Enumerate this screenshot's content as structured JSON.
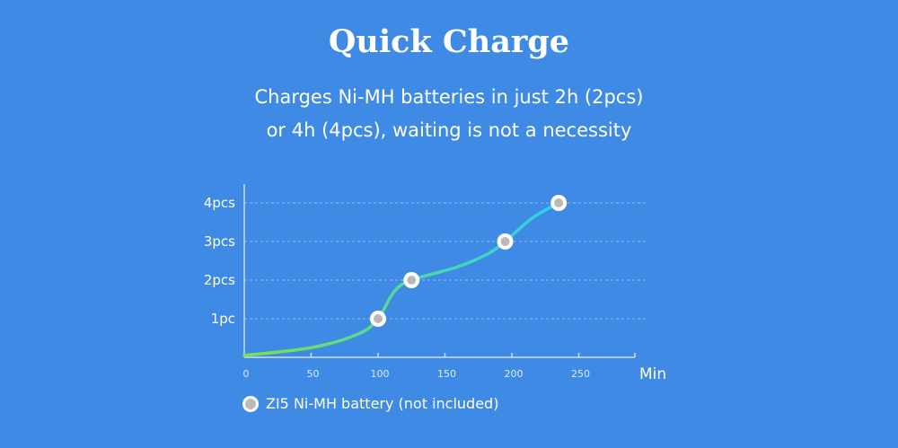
{
  "header": {
    "title": "Quick Charge",
    "subtitle_line1": "Charges Ni-MH batteries in just 2h (2pcs)",
    "subtitle_line2": "or 4h (4pcs), waiting is not a necessity"
  },
  "chart_data": {
    "type": "line",
    "x_unit": "Min",
    "x_ticks": [
      "0",
      "50",
      "100",
      "150",
      "200",
      "250"
    ],
    "y_ticks": [
      "1pc",
      "2pcs",
      "3pcs",
      "4pcs"
    ],
    "xlim": [
      0,
      290
    ],
    "ylim": [
      0,
      4.4
    ],
    "grid": "horizontal dashed",
    "series": [
      {
        "name": "ZI5 Ni-MH battery (not included)",
        "x": [
          100,
          125,
          195,
          235
        ],
        "y": [
          1,
          2,
          3,
          4
        ]
      }
    ],
    "curve_start": [
      0,
      0.05
    ],
    "colors": {
      "start": "#7be04f",
      "end": "#2fcfe8",
      "marker_fill": "#b9b9b9",
      "marker_ring": "#ffffff"
    }
  },
  "legend": {
    "label": "ZI5 Ni-MH battery (not included)"
  }
}
